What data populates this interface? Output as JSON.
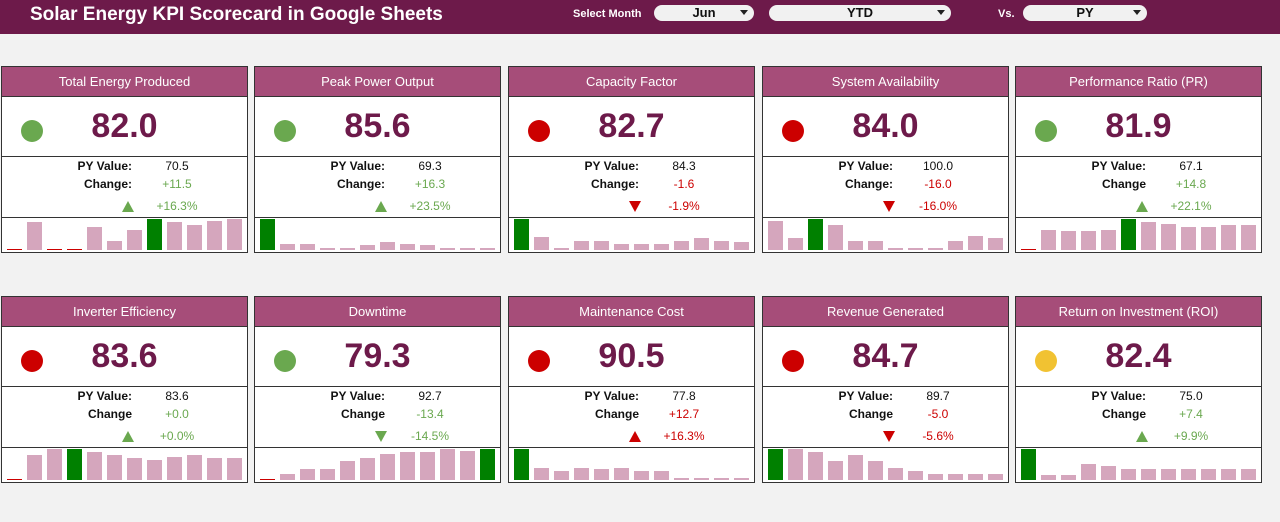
{
  "header": {
    "title": "Solar Energy KPI Scorecard in Google Sheets",
    "month_label": "Select Month",
    "month_value": "Jun",
    "period_value": "YTD",
    "vs_label": "Vs.",
    "compare_value": "PY"
  },
  "colors": {
    "header_bg": "#6d1a4a",
    "card_title_bg": "#a64d79",
    "value_text": "#6d1a4a",
    "good": "#6aa84f",
    "bad": "#cc0000",
    "neutral": "#f1c232",
    "bar_normal": "#d5a6bd",
    "bar_highlight": "#008000"
  },
  "kpis": [
    {
      "title": "Total Energy Produced",
      "value": "82.0",
      "status": "green",
      "py_label": "PY Value:",
      "py_value": "70.5",
      "change_label": "Change:",
      "change": "+11.5",
      "arrow": "up",
      "arrow_color": "green",
      "pct": "+16.3%",
      "pct_color": "green",
      "bars": [
        0.03,
        0.9,
        0.03,
        0.03,
        0.75,
        0.3,
        0.65,
        1.0,
        0.9,
        0.82,
        0.92,
        1.0
      ],
      "highlight": 7
    },
    {
      "title": "Peak Power Output",
      "value": "85.6",
      "status": "green",
      "py_label": "PY Value:",
      "py_value": "69.3",
      "change_label": "Change:",
      "change": "+16.3",
      "arrow": "up",
      "arrow_color": "green",
      "pct": "+23.5%",
      "pct_color": "green",
      "bars": [
        1.0,
        0.2,
        0.2,
        0.06,
        0.06,
        0.15,
        0.25,
        0.2,
        0.16,
        0.06,
        0.06,
        0.06
      ],
      "highlight": 0
    },
    {
      "title": "Capacity Factor",
      "value": "82.7",
      "status": "red",
      "py_label": "PY Value:",
      "py_value": "84.3",
      "change_label": "Change:",
      "change": "-1.6",
      "arrow": "down",
      "arrow_color": "red",
      "pct": "-1.9%",
      "pct_color": "red",
      "bars": [
        1.0,
        0.42,
        0.06,
        0.3,
        0.3,
        0.2,
        0.2,
        0.2,
        0.3,
        0.4,
        0.3,
        0.25
      ],
      "highlight": 0
    },
    {
      "title": "System Availability",
      "value": "84.0",
      "status": "red",
      "py_label": "PY Value:",
      "py_value": "100.0",
      "change_label": "Change:",
      "change": "-16.0",
      "arrow": "down",
      "arrow_color": "red",
      "pct": "-16.0%",
      "pct_color": "red",
      "bars": [
        0.92,
        0.38,
        1.0,
        0.8,
        0.3,
        0.3,
        0.06,
        0.06,
        0.06,
        0.3,
        0.45,
        0.4
      ],
      "highlight": 2
    },
    {
      "title": "Performance Ratio (PR)",
      "value": "81.9",
      "status": "green",
      "py_label": "PY Value:",
      "py_value": "67.1",
      "change_label": "Change",
      "change": "+14.8",
      "arrow": "up",
      "arrow_color": "green",
      "pct": "+22.1%",
      "pct_color": "green",
      "bars": [
        0.03,
        0.65,
        0.6,
        0.6,
        0.65,
        1.0,
        0.9,
        0.85,
        0.75,
        0.75,
        0.8,
        0.8
      ],
      "highlight": 5
    },
    {
      "title": "Inverter Efficiency",
      "value": "83.6",
      "status": "red",
      "py_label": "PY Value:",
      "py_value": "83.6",
      "change_label": "Change",
      "change": "+0.0",
      "arrow": "up",
      "arrow_color": "green",
      "pct": "+0.0%",
      "pct_color": "green",
      "bars": [
        0.03,
        0.8,
        1.0,
        1.0,
        0.9,
        0.8,
        0.7,
        0.65,
        0.75,
        0.8,
        0.7,
        0.7
      ],
      "highlight": 3
    },
    {
      "title": "Downtime",
      "value": "79.3",
      "status": "green",
      "py_label": "PY Value:",
      "py_value": "92.7",
      "change_label": "Change",
      "change": "-13.4",
      "arrow": "down",
      "arrow_color": "green",
      "pct": "-14.5%",
      "pct_color": "green",
      "bars": [
        0.03,
        0.2,
        0.35,
        0.35,
        0.6,
        0.7,
        0.85,
        0.9,
        0.9,
        1.0,
        0.95,
        1.0
      ],
      "highlight": 11
    },
    {
      "title": "Maintenance Cost",
      "value": "90.5",
      "status": "red",
      "py_label": "PY Value:",
      "py_value": "77.8",
      "change_label": "Change",
      "change": "+12.7",
      "arrow": "up",
      "arrow_color": "red",
      "pct": "+16.3%",
      "pct_color": "red",
      "bars": [
        1.0,
        0.4,
        0.3,
        0.4,
        0.35,
        0.4,
        0.3,
        0.3,
        0.06,
        0.06,
        0.06,
        0.06
      ],
      "highlight": 0
    },
    {
      "title": "Revenue Generated",
      "value": "84.7",
      "status": "red",
      "py_label": "PY Value:",
      "py_value": "89.7",
      "change_label": "Change",
      "change": "-5.0",
      "arrow": "down",
      "arrow_color": "red",
      "pct": "-5.6%",
      "pct_color": "red",
      "bars": [
        1.0,
        1.0,
        0.9,
        0.6,
        0.8,
        0.6,
        0.4,
        0.3,
        0.2,
        0.2,
        0.2,
        0.2
      ],
      "highlight": 0
    },
    {
      "title": "Return on Investment (ROI)",
      "value": "82.4",
      "status": "yellow",
      "py_label": "PY Value:",
      "py_value": "75.0",
      "change_label": "Change",
      "change": "+7.4",
      "arrow": "up",
      "arrow_color": "green",
      "pct": "+9.9%",
      "pct_color": "green",
      "bars": [
        1.0,
        0.15,
        0.15,
        0.5,
        0.45,
        0.35,
        0.35,
        0.35,
        0.35,
        0.35,
        0.35,
        0.35
      ],
      "highlight": 0
    }
  ]
}
